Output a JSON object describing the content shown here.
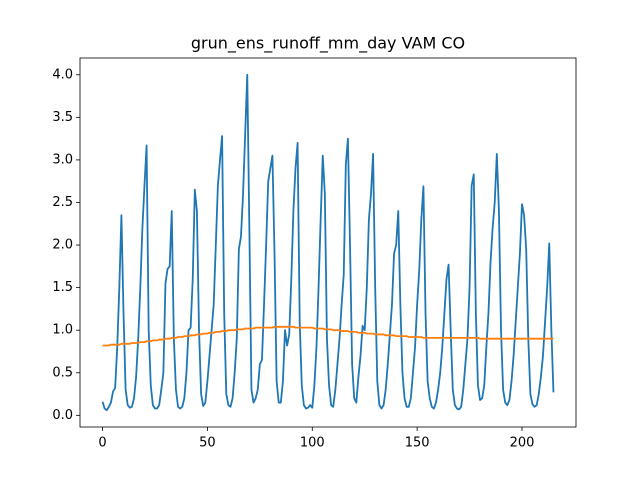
{
  "chart_data": {
    "type": "line",
    "title": "grun_ens_runoff_mm_day VAM CO",
    "x": [
      0,
      1,
      2,
      3,
      4,
      5,
      6,
      7,
      8,
      9,
      10,
      11,
      12,
      13,
      14,
      15,
      16,
      17,
      18,
      19,
      20,
      21,
      22,
      23,
      24,
      25,
      26,
      27,
      28,
      29,
      30,
      31,
      32,
      33,
      34,
      35,
      36,
      37,
      38,
      39,
      40,
      41,
      42,
      43,
      44,
      45,
      46,
      47,
      48,
      49,
      50,
      51,
      52,
      53,
      54,
      55,
      56,
      57,
      58,
      59,
      60,
      61,
      62,
      63,
      64,
      65,
      66,
      67,
      68,
      69,
      70,
      71,
      72,
      73,
      74,
      75,
      76,
      77,
      78,
      79,
      80,
      81,
      82,
      83,
      84,
      85,
      86,
      87,
      88,
      89,
      90,
      91,
      92,
      93,
      94,
      95,
      96,
      97,
      98,
      99,
      100,
      101,
      102,
      103,
      104,
      105,
      106,
      107,
      108,
      109,
      110,
      111,
      112,
      113,
      114,
      115,
      116,
      117,
      118,
      119,
      120,
      121,
      122,
      123,
      124,
      125,
      126,
      127,
      128,
      129,
      130,
      131,
      132,
      133,
      134,
      135,
      136,
      137,
      138,
      139,
      140,
      141,
      142,
      143,
      144,
      145,
      146,
      147,
      148,
      149,
      150,
      151,
      152,
      153,
      154,
      155,
      156,
      157,
      158,
      159,
      160,
      161,
      162,
      163,
      164,
      165,
      166,
      167,
      168,
      169,
      170,
      171,
      172,
      173,
      174,
      175,
      176,
      177,
      178,
      179,
      180,
      181,
      182,
      183,
      184,
      185,
      186,
      187,
      188,
      189,
      190,
      191,
      192,
      193,
      194,
      195,
      196,
      197,
      198,
      199,
      200,
      201,
      202,
      203,
      204,
      205,
      206,
      207,
      208,
      209,
      210,
      211,
      212,
      213,
      214,
      215
    ],
    "series": [
      {
        "color": "#1f77b4",
        "values": [
          0.16,
          0.08,
          0.06,
          0.1,
          0.15,
          0.28,
          0.32,
          0.8,
          1.5,
          2.35,
          1.2,
          0.3,
          0.12,
          0.09,
          0.1,
          0.2,
          0.45,
          0.9,
          1.5,
          2.2,
          2.7,
          3.17,
          1.0,
          0.35,
          0.12,
          0.08,
          0.08,
          0.12,
          0.3,
          0.5,
          1.55,
          1.72,
          1.75,
          2.4,
          0.9,
          0.3,
          0.1,
          0.08,
          0.1,
          0.2,
          0.5,
          1.0,
          1.03,
          1.6,
          2.65,
          2.4,
          1.0,
          0.25,
          0.11,
          0.15,
          0.4,
          0.7,
          1.0,
          1.3,
          2.0,
          2.7,
          3.0,
          3.28,
          1.2,
          0.25,
          0.12,
          0.1,
          0.2,
          0.5,
          0.9,
          1.95,
          2.1,
          2.6,
          3.3,
          4.0,
          2.2,
          0.3,
          0.15,
          0.2,
          0.3,
          0.6,
          0.65,
          1.3,
          2.0,
          2.75,
          2.9,
          3.05,
          1.9,
          0.4,
          0.15,
          0.15,
          0.4,
          1.0,
          0.82,
          0.95,
          1.6,
          2.4,
          2.9,
          3.2,
          1.1,
          0.35,
          0.12,
          0.08,
          0.09,
          0.12,
          0.09,
          0.35,
          0.8,
          1.5,
          2.3,
          3.05,
          2.6,
          0.9,
          0.35,
          0.12,
          0.1,
          0.3,
          0.6,
          0.9,
          1.3,
          1.65,
          2.95,
          3.25,
          2.0,
          0.6,
          0.2,
          0.15,
          0.45,
          0.7,
          1.05,
          1.0,
          1.5,
          2.3,
          2.6,
          3.07,
          1.5,
          0.4,
          0.12,
          0.08,
          0.12,
          0.3,
          0.6,
          0.95,
          1.3,
          1.9,
          2.0,
          2.4,
          1.3,
          0.5,
          0.2,
          0.1,
          0.1,
          0.2,
          0.5,
          0.8,
          1.3,
          1.7,
          2.3,
          2.69,
          1.2,
          0.4,
          0.2,
          0.1,
          0.08,
          0.15,
          0.3,
          0.5,
          0.8,
          1.2,
          1.6,
          1.77,
          1.0,
          0.3,
          0.12,
          0.08,
          0.07,
          0.1,
          0.3,
          0.6,
          0.9,
          1.5,
          2.7,
          2.83,
          1.2,
          0.35,
          0.18,
          0.2,
          0.35,
          0.8,
          1.2,
          1.8,
          2.2,
          2.5,
          3.07,
          2.4,
          1.0,
          0.3,
          0.15,
          0.12,
          0.18,
          0.4,
          0.7,
          1.1,
          1.5,
          1.9,
          2.48,
          2.35,
          1.95,
          0.9,
          0.25,
          0.13,
          0.1,
          0.12,
          0.25,
          0.45,
          0.7,
          1.1,
          1.5,
          2.02,
          1.0,
          0.27
        ]
      },
      {
        "color": "#ff7f0e",
        "values": [
          0.82,
          0.82,
          0.82,
          0.82,
          0.83,
          0.83,
          0.83,
          0.83,
          0.83,
          0.84,
          0.84,
          0.84,
          0.84,
          0.84,
          0.85,
          0.85,
          0.85,
          0.85,
          0.86,
          0.86,
          0.86,
          0.87,
          0.87,
          0.87,
          0.88,
          0.88,
          0.88,
          0.89,
          0.89,
          0.89,
          0.9,
          0.9,
          0.9,
          0.91,
          0.91,
          0.91,
          0.92,
          0.92,
          0.92,
          0.93,
          0.93,
          0.93,
          0.94,
          0.94,
          0.94,
          0.95,
          0.95,
          0.95,
          0.96,
          0.96,
          0.96,
          0.97,
          0.97,
          0.97,
          0.98,
          0.98,
          0.98,
          0.99,
          0.99,
          0.99,
          1.0,
          1.0,
          1.0,
          1.0,
          1.01,
          1.01,
          1.01,
          1.01,
          1.02,
          1.02,
          1.02,
          1.02,
          1.02,
          1.03,
          1.03,
          1.03,
          1.03,
          1.03,
          1.03,
          1.03,
          1.03,
          1.03,
          1.04,
          1.04,
          1.04,
          1.04,
          1.04,
          1.04,
          1.04,
          1.04,
          1.04,
          1.04,
          1.03,
          1.03,
          1.03,
          1.03,
          1.03,
          1.03,
          1.03,
          1.03,
          1.03,
          1.02,
          1.02,
          1.02,
          1.02,
          1.02,
          1.01,
          1.01,
          1.01,
          1.01,
          1.0,
          1.0,
          1.0,
          1.0,
          0.99,
          0.99,
          0.99,
          0.99,
          0.98,
          0.98,
          0.98,
          0.98,
          0.97,
          0.97,
          0.97,
          0.97,
          0.96,
          0.96,
          0.96,
          0.96,
          0.95,
          0.95,
          0.95,
          0.95,
          0.95,
          0.94,
          0.94,
          0.94,
          0.94,
          0.94,
          0.93,
          0.93,
          0.93,
          0.93,
          0.93,
          0.93,
          0.92,
          0.92,
          0.92,
          0.92,
          0.92,
          0.92,
          0.92,
          0.91,
          0.91,
          0.91,
          0.91,
          0.91,
          0.91,
          0.91,
          0.91,
          0.91,
          0.91,
          0.91,
          0.91,
          0.91,
          0.91,
          0.91,
          0.91,
          0.91,
          0.91,
          0.91,
          0.91,
          0.91,
          0.91,
          0.91,
          0.91,
          0.91,
          0.91,
          0.91,
          0.9,
          0.9,
          0.9,
          0.9,
          0.9,
          0.9,
          0.9,
          0.9,
          0.9,
          0.9,
          0.9,
          0.9,
          0.9,
          0.9,
          0.9,
          0.9,
          0.9,
          0.9,
          0.9,
          0.9,
          0.9,
          0.9,
          0.9,
          0.9,
          0.9,
          0.9,
          0.9,
          0.9,
          0.9,
          0.9,
          0.9,
          0.9,
          0.9,
          0.9,
          0.9,
          0.9
        ]
      }
    ],
    "xlim": [
      -10.75,
      225.75
    ],
    "xticks": [
      0,
      50,
      100,
      150,
      200
    ],
    "ylim": [
      -0.137,
      4.197
    ],
    "yticks": [
      {
        "value": 0,
        "label": "0.0"
      },
      0.5,
      {
        "value": 1,
        "label": "1.0"
      },
      1.5,
      {
        "value": 2,
        "label": "2.0"
      },
      2.5,
      {
        "value": 3,
        "label": "3.0"
      },
      3.5,
      {
        "value": 4,
        "label": "4.0"
      }
    ]
  }
}
